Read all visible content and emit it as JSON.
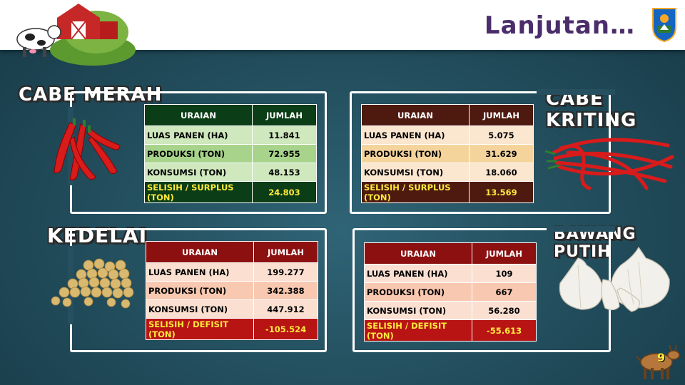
{
  "title": "Lanjutan…",
  "page_number": "9",
  "colors": {
    "purple_title": "#4b2d6b",
    "green_header": "#0b3d16",
    "green_row": "#cfe8bd",
    "green_row_alt": "#a7d48a",
    "brown_header": "#4e1a10",
    "brown_row": "#fbe6cf",
    "brown_row_alt": "#f5d49c",
    "red_header": "#8c1010",
    "red_row": "#fbe0d2",
    "red_row_alt": "#f8c8b0",
    "red_footer": "#b81414"
  },
  "commodities": [
    {
      "name": "CABE MERAH",
      "headers": [
        "URAIAN",
        "JUMLAH"
      ],
      "rows": [
        [
          "LUAS PANEN  (HA)",
          "11.841"
        ],
        [
          "PRODUKSI  (TON)",
          "72.955"
        ],
        [
          "KONSUMSI (TON)",
          "48.153"
        ]
      ],
      "footer": [
        "SELISIH / SURPLUS (TON)",
        "24.803"
      ]
    },
    {
      "name": "CABE KRITING",
      "headers": [
        "URAIAN",
        "JUMLAH"
      ],
      "rows": [
        [
          "LUAS PANEN  (HA)",
          "5.075"
        ],
        [
          "PRODUKSI  (TON)",
          "31.629"
        ],
        [
          "KONSUMSI (TON)",
          "18.060"
        ]
      ],
      "footer": [
        "SELISIH / SURPLUS (TON)",
        "13.569"
      ]
    },
    {
      "name": "KEDELAI",
      "headers": [
        "URAIAN",
        "JUMLAH"
      ],
      "rows": [
        [
          "LUAS PANEN  (HA)",
          "199.277"
        ],
        [
          "PRODUKSI  (TON)",
          "342.388"
        ],
        [
          "KONSUMSI (TON)",
          "447.912"
        ]
      ],
      "footer": [
        "SELISIH / DEFISIT (TON)",
        "-105.524"
      ]
    },
    {
      "name": "BAWANG PUTIH",
      "headers": [
        "URAIAN",
        "JUMLAH"
      ],
      "rows": [
        [
          "LUAS PANEN  (HA)",
          "109"
        ],
        [
          "PRODUKSI  (TON)",
          "667"
        ],
        [
          "KONSUMSI (TON)",
          "56.280"
        ]
      ],
      "footer": [
        "SELISIH / DEFISIT (TON)",
        "-55.613"
      ]
    }
  ],
  "icons": [
    "farm-barn-cow-icon",
    "provincial-emblem-icon",
    "red-chili-icon",
    "curly-chili-icon",
    "soybean-icon",
    "garlic-icon",
    "goat-icon"
  ]
}
